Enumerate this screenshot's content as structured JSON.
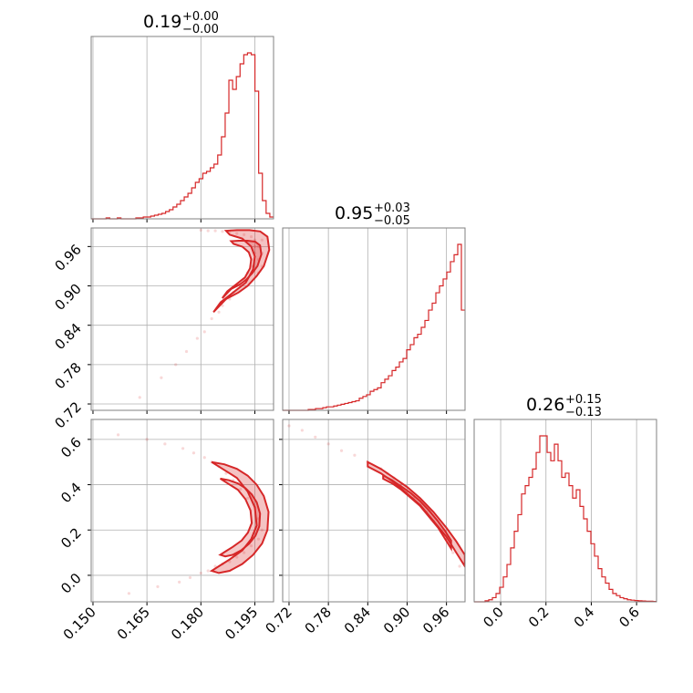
{
  "chart_data": {
    "type": "corner",
    "color": "#d62728",
    "grid": true,
    "parameters": [
      {
        "title": "0.19",
        "upper_error": "+0.00",
        "lower_error": "−0.00",
        "range": [
          0.1495,
          0.2002
        ],
        "ticks": [
          0.15,
          0.165,
          0.18,
          0.195
        ],
        "tick_labels": [
          "0.150",
          "0.165",
          "0.180",
          "0.195"
        ]
      },
      {
        "title": "0.95",
        "upper_error": "+0.03",
        "lower_error": "−0.05",
        "range": [
          0.7103,
          0.9883
        ],
        "ticks": [
          0.72,
          0.78,
          0.84,
          0.9,
          0.96
        ],
        "tick_labels": [
          "0.72",
          "0.78",
          "0.84",
          "0.90",
          "0.96"
        ]
      },
      {
        "title": "0.26",
        "upper_error": "+0.15",
        "lower_error": "−0.13",
        "range": [
          -0.117,
          0.688
        ],
        "ticks": [
          0.0,
          0.2,
          0.4,
          0.6
        ],
        "tick_labels": [
          "0.0",
          "0.2",
          "0.4",
          "0.6"
        ]
      }
    ],
    "hist_1": {
      "x": [
        0.1495,
        0.1509,
        0.1524,
        0.1538,
        0.1552,
        0.1566,
        0.1581,
        0.1595,
        0.1609,
        0.1624,
        0.1638,
        0.1652,
        0.1667,
        0.1681,
        0.1695,
        0.1709,
        0.1724,
        0.1738,
        0.1752,
        0.1767,
        0.1781,
        0.1795,
        0.1809,
        0.1824,
        0.1838,
        0.1842,
        0.1852,
        0.1861,
        0.1867,
        0.1873,
        0.188,
        0.1886,
        0.1892,
        0.1898,
        0.1905,
        0.1911,
        0.1917,
        0.1923,
        0.193,
        0.1936,
        0.1942,
        0.1948,
        0.1955,
        0.1961,
        0.1967,
        0.1973,
        0.198,
        0.1986,
        0.1992
      ],
      "values": [
        0,
        0,
        0,
        0,
        0.005,
        0,
        0,
        0.005,
        0,
        0,
        0,
        0,
        0.005,
        0.005,
        0.01,
        0.01,
        0.015,
        0.02,
        0.025,
        0.03,
        0.04,
        0.05,
        0.065,
        0.08,
        0.1,
        0.12,
        0.14,
        0.17,
        0.2,
        0.22,
        0.25,
        0.26,
        0.28,
        0.3,
        0.35,
        0.45,
        0.58,
        0.76,
        0.71,
        0.78,
        0.85,
        0.9,
        0.91,
        0.9,
        0.7,
        0.25,
        0.1,
        0.03,
        0.01
      ]
    },
    "hist_2": {
      "x": [
        0.7103,
        0.7159,
        0.7214,
        0.727,
        0.7325,
        0.7381,
        0.7436,
        0.7492,
        0.7547,
        0.7603,
        0.7658,
        0.7714,
        0.7769,
        0.7825,
        0.788,
        0.7936,
        0.7991,
        0.8047,
        0.8102,
        0.8158,
        0.8213,
        0.8269,
        0.8324,
        0.838,
        0.8435,
        0.8491,
        0.8546,
        0.8602,
        0.8657,
        0.8713,
        0.8768,
        0.8824,
        0.8879,
        0.8935,
        0.899,
        0.9046,
        0.9101,
        0.9157,
        0.9212,
        0.9268,
        0.9323,
        0.9379,
        0.9434,
        0.949,
        0.9545,
        0.9601,
        0.9656,
        0.9712,
        0.9767,
        0.9823
      ],
      "values": [
        0,
        0,
        0,
        0,
        0,
        0,
        0,
        0.005,
        0.005,
        0.01,
        0.01,
        0.015,
        0.02,
        0.02,
        0.025,
        0.03,
        0.035,
        0.04,
        0.045,
        0.05,
        0.055,
        0.07,
        0.08,
        0.09,
        0.11,
        0.12,
        0.13,
        0.16,
        0.18,
        0.2,
        0.23,
        0.25,
        0.28,
        0.3,
        0.35,
        0.38,
        0.42,
        0.44,
        0.48,
        0.52,
        0.58,
        0.62,
        0.68,
        0.72,
        0.76,
        0.8,
        0.86,
        0.9,
        0.96,
        0.58
      ]
    },
    "hist_3": {
      "x": [
        -0.117,
        -0.1,
        -0.084,
        -0.068,
        -0.052,
        -0.036,
        -0.02,
        -0.004,
        0.012,
        0.028,
        0.044,
        0.06,
        0.076,
        0.092,
        0.108,
        0.124,
        0.14,
        0.156,
        0.172,
        0.188,
        0.204,
        0.22,
        0.236,
        0.252,
        0.268,
        0.284,
        0.3,
        0.316,
        0.332,
        0.348,
        0.364,
        0.38,
        0.396,
        0.412,
        0.428,
        0.444,
        0.46,
        0.476,
        0.492,
        0.508,
        0.524,
        0.54,
        0.556,
        0.572,
        0.588,
        0.604,
        0.62,
        0.636,
        0.652,
        0.668
      ],
      "values": [
        0,
        0,
        0,
        0.005,
        0.01,
        0.02,
        0.04,
        0.07,
        0.12,
        0.18,
        0.26,
        0.34,
        0.42,
        0.52,
        0.56,
        0.6,
        0.64,
        0.72,
        0.8,
        0.8,
        0.72,
        0.68,
        0.76,
        0.68,
        0.6,
        0.62,
        0.56,
        0.5,
        0.54,
        0.46,
        0.4,
        0.34,
        0.28,
        0.22,
        0.16,
        0.12,
        0.09,
        0.06,
        0.04,
        0.03,
        0.02,
        0.015,
        0.01,
        0.008,
        0.006,
        0.005,
        0.004,
        0.003,
        0.003,
        0.002
      ]
    },
    "scatter_12": {
      "x": [
        0.163,
        0.169,
        0.173,
        0.176,
        0.179,
        0.181,
        0.183,
        0.185,
        0.186,
        0.187,
        0.188,
        0.189,
        0.19,
        0.191,
        0.192,
        0.193,
        0.194,
        0.194,
        0.195,
        0.195,
        0.196,
        0.196,
        0.197,
        0.197,
        0.197,
        0.196,
        0.195,
        0.194,
        0.192,
        0.19,
        0.188,
        0.186,
        0.184,
        0.182,
        0.18
      ],
      "y": [
        0.73,
        0.76,
        0.78,
        0.8,
        0.82,
        0.83,
        0.85,
        0.86,
        0.87,
        0.88,
        0.88,
        0.89,
        0.9,
        0.9,
        0.91,
        0.92,
        0.93,
        0.94,
        0.95,
        0.96,
        0.94,
        0.92,
        0.95,
        0.97,
        0.93,
        0.96,
        0.97,
        0.975,
        0.978,
        0.98,
        0.982,
        0.983,
        0.984,
        0.984,
        0.985
      ]
    },
    "contour_12": {
      "outer_x": [
        0.1835,
        0.187,
        0.1905,
        0.193,
        0.1955,
        0.1975,
        0.199,
        0.1985,
        0.1965,
        0.1935,
        0.19,
        0.187,
        0.188,
        0.1915,
        0.194,
        0.195,
        0.1945,
        0.1925,
        0.189,
        0.1855,
        0.1835
      ],
      "outer_y": [
        0.86,
        0.88,
        0.89,
        0.9,
        0.915,
        0.93,
        0.955,
        0.975,
        0.983,
        0.985,
        0.985,
        0.984,
        0.978,
        0.972,
        0.96,
        0.945,
        0.925,
        0.905,
        0.89,
        0.875,
        0.86
      ]
    },
    "scatter_13": {
      "x": [
        0.157,
        0.165,
        0.17,
        0.175,
        0.178,
        0.181,
        0.183,
        0.185,
        0.187,
        0.189,
        0.191,
        0.193,
        0.195,
        0.196,
        0.197,
        0.196,
        0.194,
        0.192,
        0.19,
        0.188,
        0.186,
        0.184,
        0.182,
        0.18,
        0.177,
        0.174,
        0.168,
        0.16
      ],
      "y": [
        0.62,
        0.6,
        0.58,
        0.56,
        0.54,
        0.52,
        0.5,
        0.48,
        0.45,
        0.42,
        0.38,
        0.34,
        0.3,
        0.25,
        0.2,
        0.16,
        0.13,
        0.1,
        0.08,
        0.06,
        0.05,
        0.04,
        0.02,
        0.01,
        -0.01,
        -0.03,
        -0.05,
        -0.08
      ]
    },
    "contour_13": {
      "outer_x": [
        0.183,
        0.1865,
        0.19,
        0.193,
        0.1955,
        0.1975,
        0.1988,
        0.1985,
        0.197,
        0.1945,
        0.1915,
        0.188,
        0.185,
        0.183,
        0.185,
        0.188,
        0.1915,
        0.194,
        0.1955,
        0.195,
        0.193,
        0.19,
        0.186,
        0.183
      ],
      "outer_y": [
        0.5,
        0.49,
        0.47,
        0.44,
        0.4,
        0.35,
        0.28,
        0.2,
        0.14,
        0.09,
        0.05,
        0.02,
        0.01,
        0.02,
        0.04,
        0.07,
        0.11,
        0.16,
        0.22,
        0.3,
        0.37,
        0.43,
        0.47,
        0.5
      ]
    },
    "scatter_23": {
      "x": [
        0.72,
        0.74,
        0.76,
        0.78,
        0.8,
        0.82,
        0.84,
        0.86,
        0.87,
        0.88,
        0.89,
        0.9,
        0.91,
        0.92,
        0.93,
        0.94,
        0.95,
        0.96,
        0.97,
        0.98
      ],
      "y": [
        0.66,
        0.64,
        0.61,
        0.58,
        0.55,
        0.53,
        0.5,
        0.47,
        0.45,
        0.43,
        0.4,
        0.37,
        0.34,
        0.31,
        0.28,
        0.24,
        0.2,
        0.16,
        0.1,
        0.04
      ]
    },
    "contour_23": {
      "outer_x": [
        0.84,
        0.86,
        0.88,
        0.9,
        0.92,
        0.94,
        0.96,
        0.975,
        0.988,
        0.988,
        0.975,
        0.96,
        0.94,
        0.92,
        0.9,
        0.88,
        0.86,
        0.84
      ],
      "outer_y": [
        0.5,
        0.47,
        0.43,
        0.39,
        0.34,
        0.28,
        0.21,
        0.15,
        0.09,
        0.04,
        0.1,
        0.17,
        0.24,
        0.31,
        0.36,
        0.41,
        0.45,
        0.48
      ]
    }
  }
}
